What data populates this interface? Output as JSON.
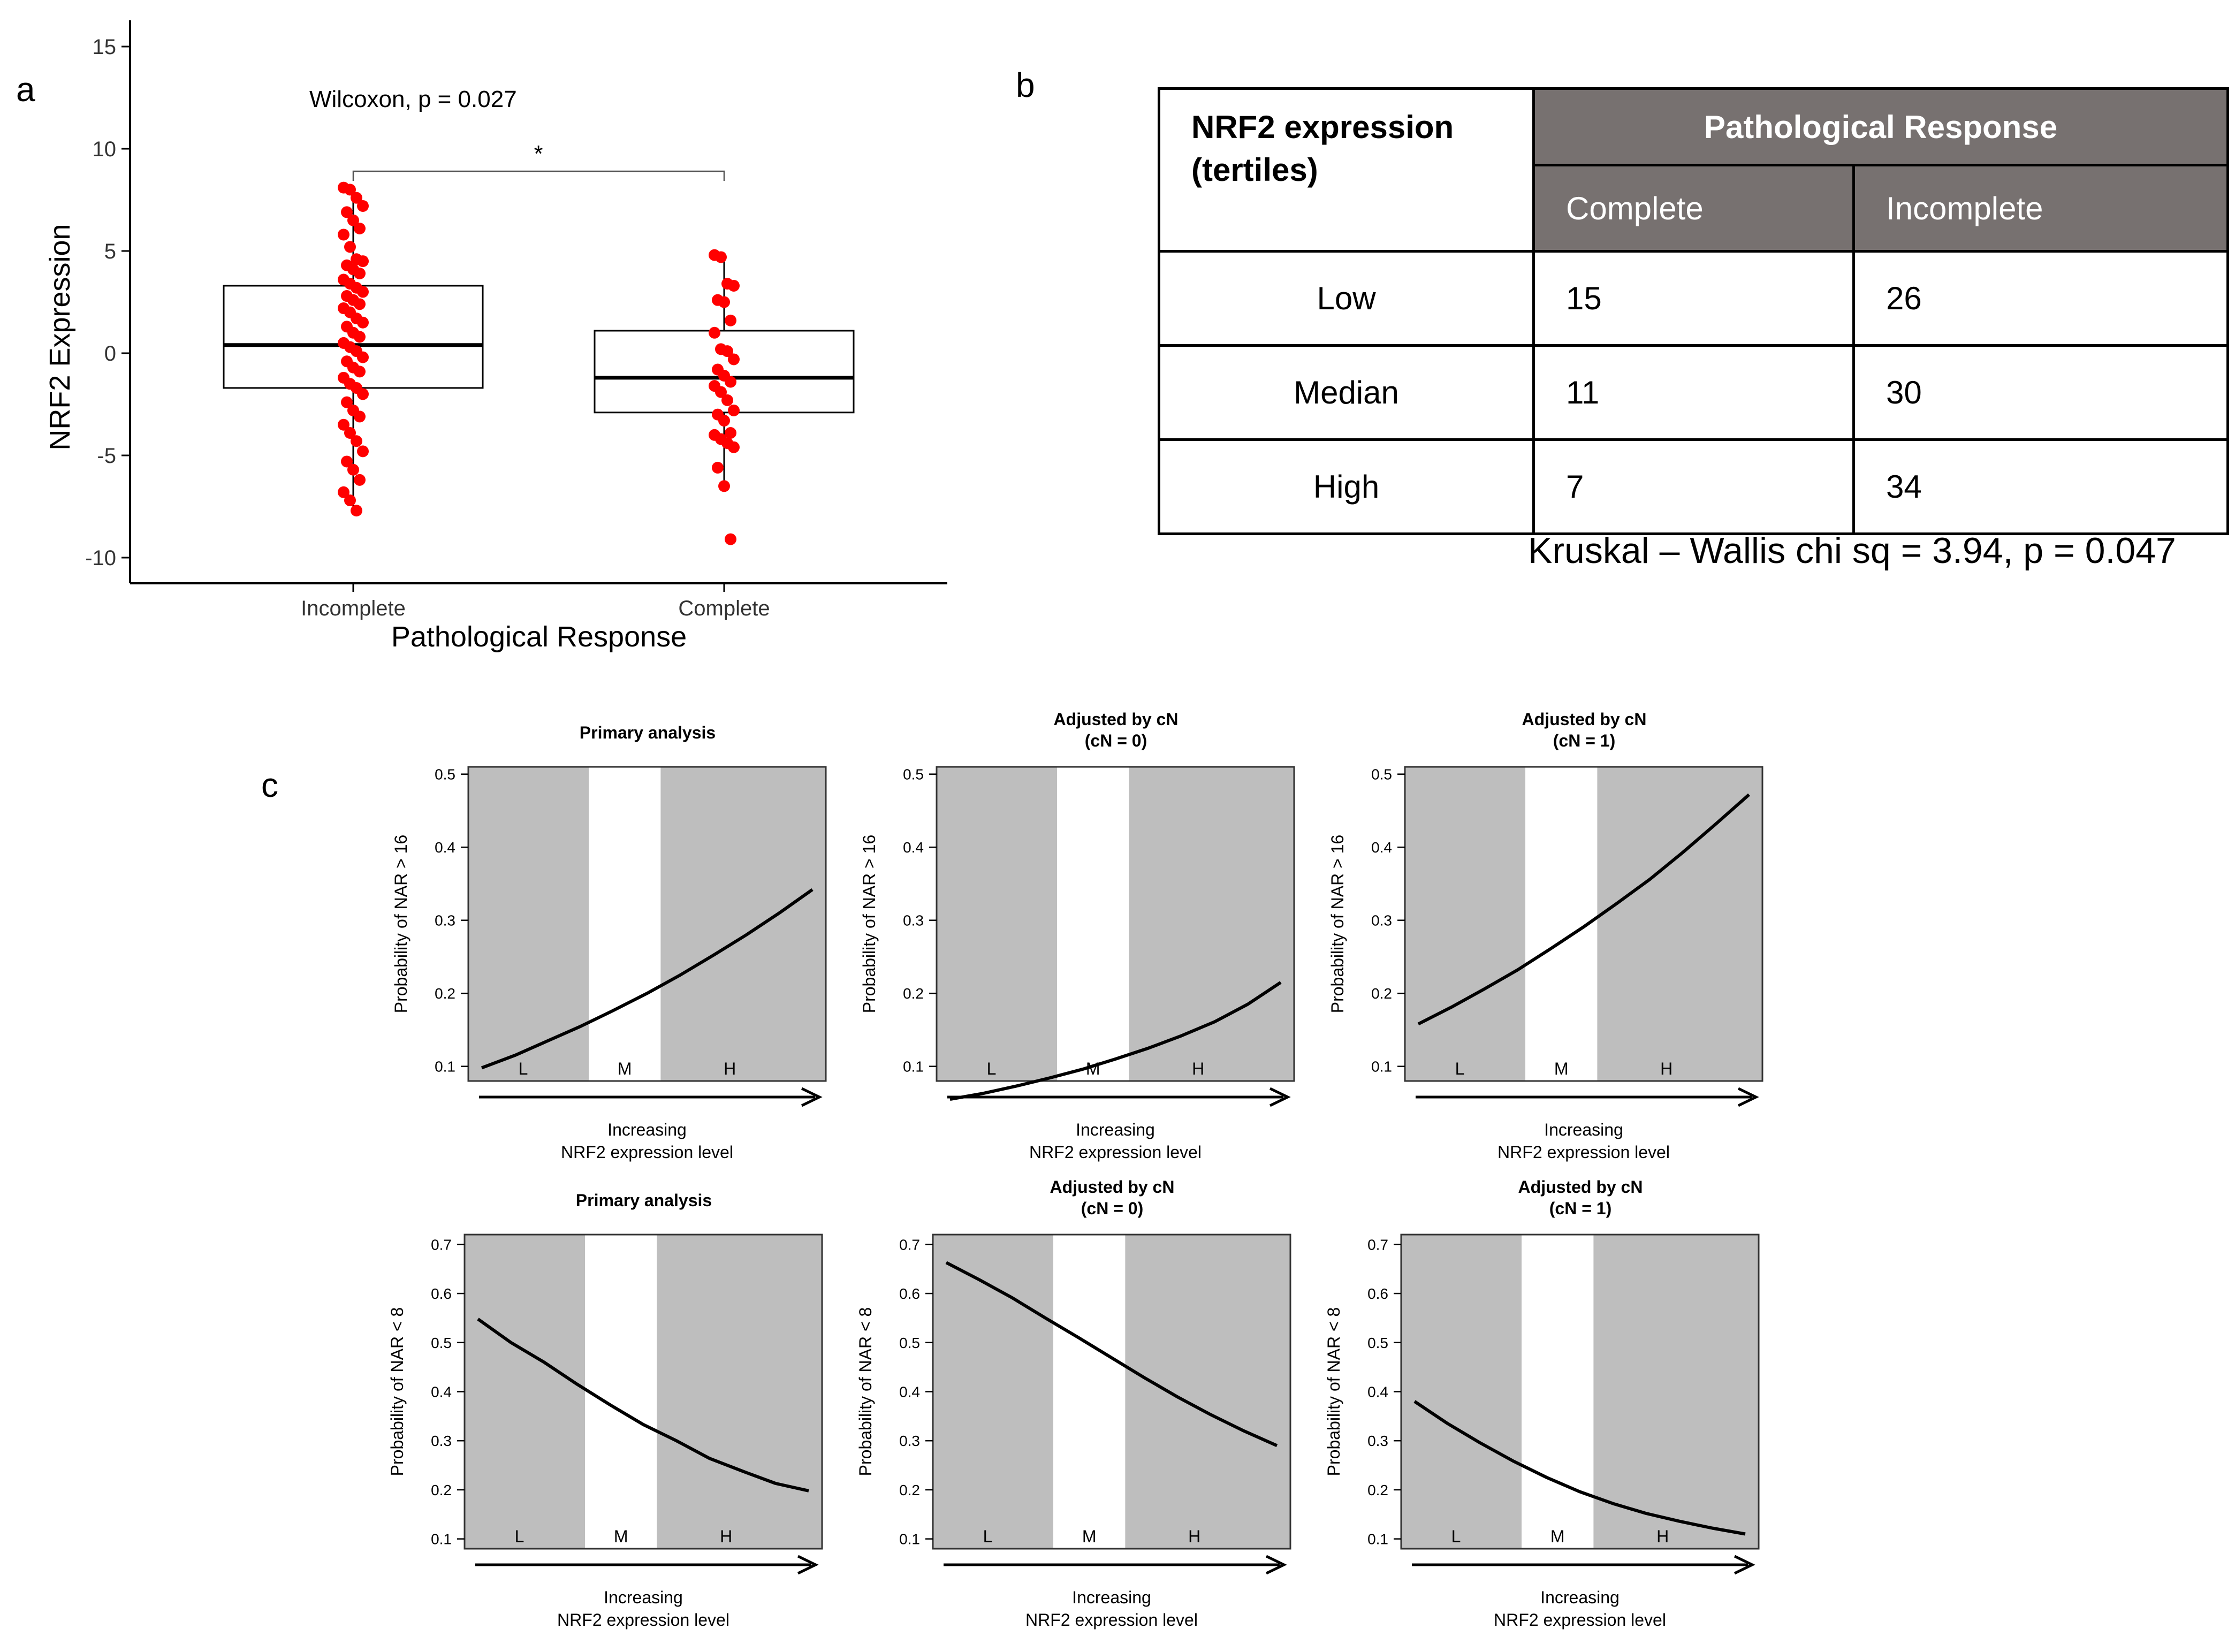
{
  "panel_labels": {
    "a": "a",
    "b": "b",
    "c": "c"
  },
  "panel_a": {
    "chart_data": {
      "type": "boxplot",
      "ylabel": "NRF2 Expression",
      "xlabel": "Pathological Response",
      "categories": [
        "Incomplete",
        "Complete"
      ],
      "ylim": [
        -11,
        16
      ],
      "yticks": [
        15,
        10,
        5,
        0,
        -5,
        -10
      ],
      "ytick_labels": [
        "15",
        "10",
        "5",
        "0",
        "-5",
        "-10"
      ],
      "annotation": "Wilcoxon, p = 0.027",
      "significance": "*",
      "point_color": "#ff0000",
      "boxes": [
        {
          "name": "Incomplete",
          "q1": -1.7,
          "median": 0.4,
          "q3": 3.3,
          "whisker_low": -7.7,
          "whisker_high": 8.1,
          "points": [
            8.1,
            8.0,
            7.6,
            7.2,
            6.9,
            6.5,
            6.1,
            5.8,
            5.2,
            4.6,
            4.5,
            4.3,
            4.1,
            3.9,
            3.6,
            3.4,
            3.2,
            3.0,
            2.8,
            2.6,
            2.4,
            2.2,
            2.0,
            1.7,
            1.5,
            1.3,
            1.0,
            0.8,
            0.5,
            0.3,
            0.1,
            -0.2,
            -0.4,
            -0.7,
            -0.9,
            -1.2,
            -1.5,
            -1.7,
            -2.0,
            -2.4,
            -2.8,
            -3.1,
            -3.5,
            -3.9,
            -4.3,
            -4.8,
            -5.3,
            -5.7,
            -6.2,
            -6.8,
            -7.2,
            -7.7
          ]
        },
        {
          "name": "Complete",
          "q1": -2.9,
          "median": -1.2,
          "q3": 1.1,
          "whisker_low": -6.5,
          "whisker_high": 4.8,
          "points": [
            4.8,
            4.7,
            3.4,
            3.3,
            2.6,
            2.5,
            1.6,
            1.0,
            0.2,
            0.1,
            -0.3,
            -0.8,
            -1.1,
            -1.4,
            -1.6,
            -1.9,
            -2.3,
            -2.8,
            -3.0,
            -3.3,
            -3.9,
            -4.0,
            -4.2,
            -4.4,
            -4.6,
            -5.6,
            -6.5,
            -9.1
          ]
        }
      ]
    }
  },
  "panel_b": {
    "corner_line1": "NRF2 expression",
    "corner_line2": "(tertiles)",
    "group_header": "Pathological Response",
    "columns": [
      "Complete",
      "Incomplete"
    ],
    "rows": [
      {
        "label": "Low",
        "values": [
          "15",
          "26"
        ]
      },
      {
        "label": "Median",
        "values": [
          "11",
          "30"
        ]
      },
      {
        "label": "High",
        "values": [
          "7",
          "34"
        ]
      }
    ],
    "footnote": "Kruskal – Wallis chi sq = 3.94, p = 0.047"
  },
  "panel_c": {
    "chart_data": [
      {
        "type": "line",
        "title_line1": "Primary analysis",
        "title_line2": "",
        "ylabel": "Probability of NAR > 16",
        "ylim": [
          0.08,
          0.51
        ],
        "yticks": [
          0.1,
          0.2,
          0.3,
          0.4,
          0.5
        ],
        "ytick_labels": [
          "0.1",
          "0.2",
          "0.3",
          "0.4",
          "0.5"
        ],
        "x": [
          0,
          0.1,
          0.2,
          0.3,
          0.4,
          0.5,
          0.6,
          0.7,
          0.8,
          0.9,
          1.0
        ],
        "y": [
          0.098,
          0.115,
          0.135,
          0.155,
          0.177,
          0.2,
          0.225,
          0.252,
          0.28,
          0.31,
          0.342
        ],
        "band_labels": [
          "L",
          "M",
          "H"
        ],
        "xlabel_line1": "Increasing",
        "xlabel_line2": "NRF2 expression level"
      },
      {
        "type": "line",
        "title_line1": "Adjusted by cN",
        "title_line2": "(cN = 0)",
        "ylabel": "Probability of NAR > 16",
        "ylim": [
          0.08,
          0.51
        ],
        "yticks": [
          0.1,
          0.2,
          0.3,
          0.4,
          0.5
        ],
        "ytick_labels": [
          "0.1",
          "0.2",
          "0.3",
          "0.4",
          "0.5"
        ],
        "x": [
          0,
          0.1,
          0.2,
          0.3,
          0.4,
          0.5,
          0.6,
          0.7,
          0.8,
          0.9,
          1.0
        ],
        "y": [
          0.055,
          0.063,
          0.073,
          0.084,
          0.096,
          0.11,
          0.125,
          0.142,
          0.161,
          0.185,
          0.215
        ],
        "band_labels": [
          "L",
          "M",
          "H"
        ],
        "xlabel_line1": "Increasing",
        "xlabel_line2": "NRF2 expression level"
      },
      {
        "type": "line",
        "title_line1": "Adjusted by cN",
        "title_line2": "(cN = 1)",
        "ylabel": "Probability of NAR > 16",
        "ylim": [
          0.08,
          0.51
        ],
        "yticks": [
          0.1,
          0.2,
          0.3,
          0.4,
          0.5
        ],
        "ytick_labels": [
          "0.1",
          "0.2",
          "0.3",
          "0.4",
          "0.5"
        ],
        "x": [
          0,
          0.1,
          0.2,
          0.3,
          0.4,
          0.5,
          0.6,
          0.7,
          0.8,
          0.9,
          1.0
        ],
        "y": [
          0.158,
          0.181,
          0.206,
          0.232,
          0.261,
          0.291,
          0.323,
          0.356,
          0.393,
          0.432,
          0.472
        ],
        "band_labels": [
          "L",
          "M",
          "H"
        ],
        "xlabel_line1": "Increasing",
        "xlabel_line2": "NRF2 expression level"
      },
      {
        "type": "line",
        "title_line1": "Primary analysis",
        "title_line2": "",
        "ylabel": "Probability of NAR < 8",
        "ylim": [
          0.08,
          0.72
        ],
        "yticks": [
          0.1,
          0.2,
          0.3,
          0.4,
          0.5,
          0.6,
          0.7
        ],
        "ytick_labels": [
          "0.1",
          "0.2",
          "0.3",
          "0.4",
          "0.5",
          "0.6",
          "0.7"
        ],
        "x": [
          0,
          0.1,
          0.2,
          0.3,
          0.4,
          0.5,
          0.6,
          0.7,
          0.8,
          0.9,
          1.0
        ],
        "y": [
          0.548,
          0.5,
          0.46,
          0.415,
          0.373,
          0.333,
          0.3,
          0.264,
          0.238,
          0.213,
          0.198
        ],
        "band_labels": [
          "L",
          "M",
          "H"
        ],
        "xlabel_line1": "Increasing",
        "xlabel_line2": "NRF2 expression level"
      },
      {
        "type": "line",
        "title_line1": "Adjusted by cN",
        "title_line2": "(cN = 0)",
        "ylabel": "Probability of NAR < 8",
        "ylim": [
          0.08,
          0.72
        ],
        "yticks": [
          0.1,
          0.2,
          0.3,
          0.4,
          0.5,
          0.6,
          0.7
        ],
        "ytick_labels": [
          "0.1",
          "0.2",
          "0.3",
          "0.4",
          "0.5",
          "0.6",
          "0.7"
        ],
        "x": [
          0,
          0.1,
          0.2,
          0.3,
          0.4,
          0.5,
          0.6,
          0.7,
          0.8,
          0.9,
          1.0
        ],
        "y": [
          0.663,
          0.628,
          0.591,
          0.55,
          0.51,
          0.469,
          0.428,
          0.389,
          0.353,
          0.32,
          0.29
        ],
        "band_labels": [
          "L",
          "M",
          "H"
        ],
        "xlabel_line1": "Increasing",
        "xlabel_line2": "NRF2 expression level"
      },
      {
        "type": "line",
        "title_line1": "Adjusted by cN",
        "title_line2": "(cN = 1)",
        "ylabel": "Probability of NAR < 8",
        "ylim": [
          0.08,
          0.72
        ],
        "yticks": [
          0.1,
          0.2,
          0.3,
          0.4,
          0.5,
          0.6,
          0.7
        ],
        "ytick_labels": [
          "0.1",
          "0.2",
          "0.3",
          "0.4",
          "0.5",
          "0.6",
          "0.7"
        ],
        "x": [
          0,
          0.1,
          0.2,
          0.3,
          0.4,
          0.5,
          0.6,
          0.7,
          0.8,
          0.9,
          1.0
        ],
        "y": [
          0.38,
          0.335,
          0.295,
          0.258,
          0.225,
          0.196,
          0.172,
          0.152,
          0.136,
          0.122,
          0.11
        ],
        "band_labels": [
          "L",
          "M",
          "H"
        ],
        "xlabel_line1": "Increasing",
        "xlabel_line2": "NRF2 expression level"
      }
    ]
  }
}
